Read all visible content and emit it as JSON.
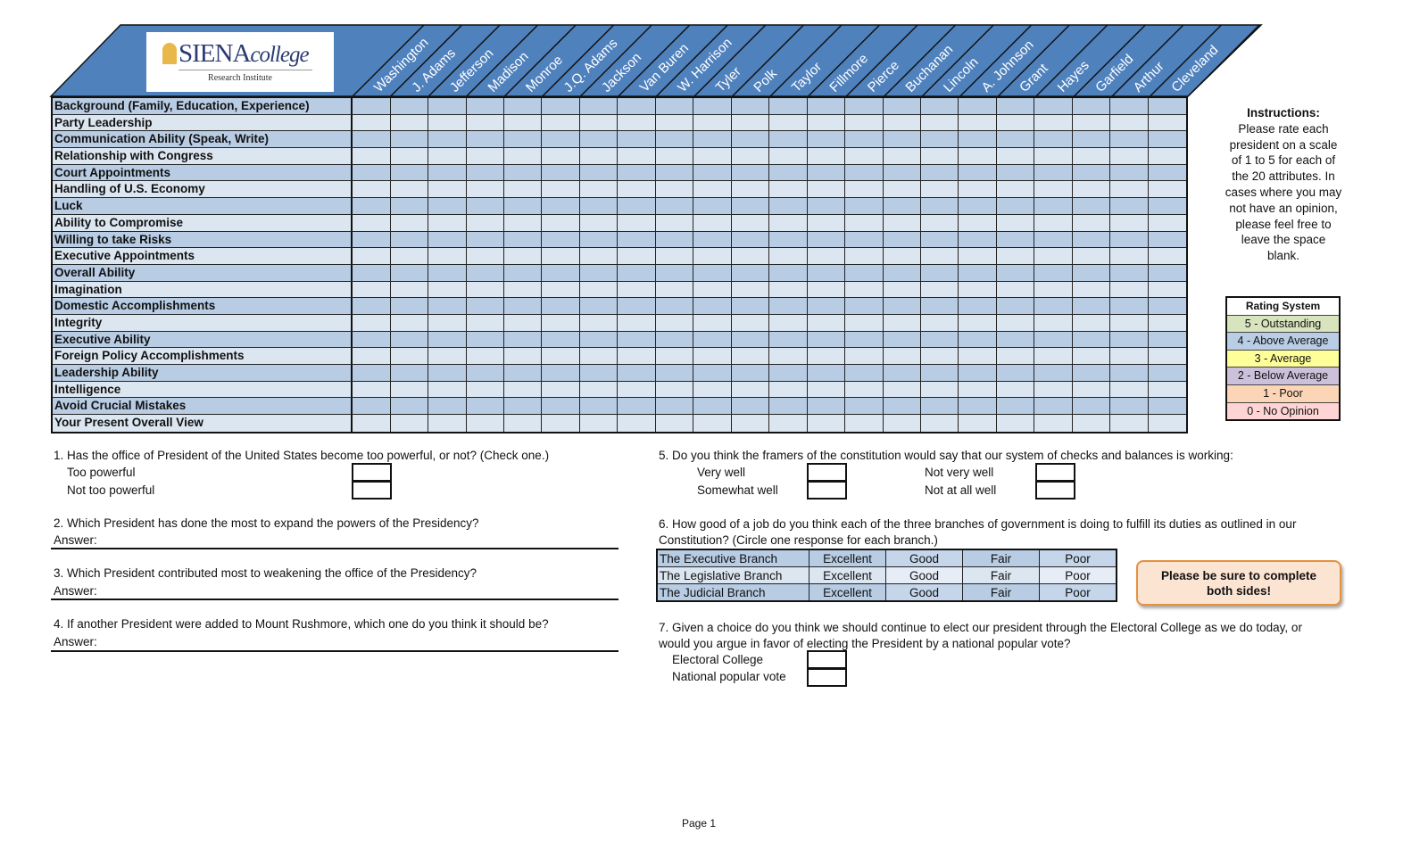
{
  "logo": {
    "name_main": "SIENA",
    "name_italic": "college",
    "subtitle": "Research Institute"
  },
  "presidents": [
    "Washington",
    "J. Adams",
    "Jefferson",
    "Madison",
    "Monroe",
    "J.Q. Adams",
    "Jackson",
    "Van Buren",
    "W. Harrison",
    "Tyler",
    "Polk",
    "Taylor",
    "Fillmore",
    "Pierce",
    "Buchanan",
    "Lincoln",
    "A. Johnson",
    "Grant",
    "Hayes",
    "Garfield",
    "Arthur",
    "Cleveland"
  ],
  "attributes": [
    "Background (Family, Education, Experience)",
    "Party Leadership",
    "Communication Ability (Speak, Write)",
    "Relationship with Congress",
    "Court Appointments",
    "Handling of U.S. Economy",
    "Luck",
    "Ability to Compromise",
    "Willing to take Risks",
    "Executive Appointments",
    "Overall Ability",
    "Imagination",
    "Domestic Accomplishments",
    "Integrity",
    "Executive Ability",
    "Foreign Policy Accomplishments",
    "Leadership Ability",
    "Intelligence",
    "Avoid Crucial Mistakes",
    "Your Present Overall View"
  ],
  "instructions": {
    "title": "Instructions:",
    "text": "Please rate each president on a scale of 1 to 5 for each of the 20 attributes.  In cases where you may not have an opinion, please feel free to leave the space blank."
  },
  "rating": {
    "title": "Rating System",
    "items": [
      {
        "label": "5 - Outstanding",
        "color": "#d7e4bd"
      },
      {
        "label": "4 - Above Average",
        "color": "#b9cde5"
      },
      {
        "label": "3 - Average",
        "color": "#ffff99"
      },
      {
        "label": "2 - Below Average",
        "color": "#ccc1da"
      },
      {
        "label": "1 - Poor",
        "color": "#fbd5b5"
      },
      {
        "label": "0 - No Opinion",
        "color": "#ffd4d4"
      }
    ]
  },
  "colors": {
    "header": "#4f81bd",
    "row_dark": "#b8cce4",
    "row_light": "#dce6f1"
  },
  "q1": {
    "text": "1. Has the office of President of the United States become too powerful, or not? (Check one.)",
    "options": [
      "Too powerful",
      "Not too powerful"
    ]
  },
  "q2": {
    "text": "2. Which President has done the most to expand the powers of the Presidency?",
    "answer": "Answer:"
  },
  "q3": {
    "text": "3. Which President contributed most to weakening the office of the Presidency?",
    "answer": "Answer:"
  },
  "q4": {
    "text": "4. If another President were added to Mount Rushmore, which one do you think it should be?",
    "answer": "Answer:"
  },
  "q5": {
    "text": "5. Do you think the framers of the constitution would say that our system of checks and balances is working:",
    "options": [
      "Very well",
      "Somewhat well",
      "Not very well",
      "Not at all well"
    ]
  },
  "q6": {
    "text1": "6. How good of a job do you think each of the three branches of government is doing to fulfill its duties as outlined in our",
    "text2": "Constitution? (Circle one response for each branch.)",
    "branches": [
      "The Executive Branch",
      "The Legislative Branch",
      "The Judicial Branch"
    ],
    "responses": [
      "Excellent",
      "Good",
      "Fair",
      "Poor"
    ]
  },
  "callout": {
    "text": "Please be sure to complete both sides!"
  },
  "q7": {
    "text1": "7. Given a choice do you think we should continue to elect our president through the Electoral College as we do today, or",
    "text2": "would you argue in favor of electing the President by a national popular vote?",
    "options": [
      "Electoral College",
      "National popular vote"
    ]
  },
  "footer": {
    "page": "Page 1"
  }
}
